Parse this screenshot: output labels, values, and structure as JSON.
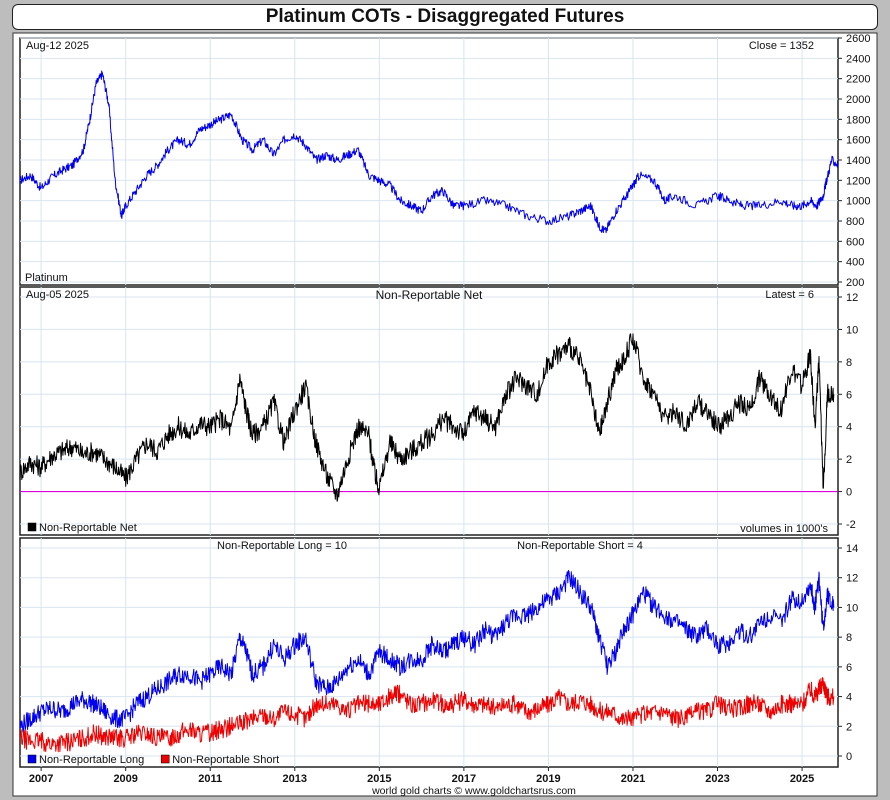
{
  "title": "Platinum COTs - Disaggregated Futures",
  "footer": "world gold charts © www.goldchartsrus.com",
  "x_axis": {
    "ticks": [
      "2007",
      "2009",
      "2011",
      "2013",
      "2015",
      "2017",
      "2019",
      "2021",
      "2023",
      "2025"
    ],
    "range": [
      2006.5,
      2025.85
    ]
  },
  "colors": {
    "price": "#0000ee",
    "net": "#000000",
    "long": "#0000ee",
    "short": "#ee0000",
    "zero_line": "#dd00dd",
    "grid": "#d8e4f0"
  },
  "chart_data": [
    {
      "type": "line",
      "panel": "price",
      "date_label": "Aug-12  2025",
      "corner_label": "Close = 1352",
      "series_label": "Platinum",
      "ylim": [
        200,
        2600
      ],
      "yticks": [
        200,
        400,
        600,
        800,
        1000,
        1200,
        1400,
        1600,
        1800,
        2000,
        2200,
        2400,
        2600
      ],
      "series": [
        {
          "name": "Platinum",
          "x": [
            2006.5,
            2006.75,
            2007.0,
            2007.25,
            2007.5,
            2007.75,
            2008.0,
            2008.15,
            2008.3,
            2008.45,
            2008.6,
            2008.75,
            2008.9,
            2009.0,
            2009.25,
            2009.5,
            2009.75,
            2010.0,
            2010.25,
            2010.5,
            2010.75,
            2011.0,
            2011.25,
            2011.5,
            2011.75,
            2012.0,
            2012.25,
            2012.5,
            2012.75,
            2013.0,
            2013.25,
            2013.5,
            2013.75,
            2014.0,
            2014.25,
            2014.5,
            2014.75,
            2015.0,
            2015.25,
            2015.5,
            2015.75,
            2016.0,
            2016.25,
            2016.5,
            2016.75,
            2017.0,
            2017.5,
            2018.0,
            2018.5,
            2019.0,
            2019.5,
            2019.75,
            2020.0,
            2020.2,
            2020.35,
            2020.6,
            2020.85,
            2021.0,
            2021.15,
            2021.5,
            2021.75,
            2022.0,
            2022.5,
            2023.0,
            2023.3,
            2023.6,
            2024.0,
            2024.5,
            2024.8,
            2025.0,
            2025.2,
            2025.35,
            2025.5,
            2025.58,
            2025.7,
            2025.85
          ],
          "values": [
            1200,
            1250,
            1120,
            1230,
            1300,
            1350,
            1500,
            1800,
            2150,
            2250,
            1950,
            1200,
            850,
            950,
            1100,
            1250,
            1350,
            1500,
            1600,
            1550,
            1700,
            1750,
            1800,
            1850,
            1600,
            1500,
            1600,
            1450,
            1600,
            1650,
            1550,
            1400,
            1450,
            1400,
            1450,
            1500,
            1250,
            1200,
            1150,
            1000,
            950,
            900,
            1050,
            1100,
            950,
            950,
            1000,
            950,
            850,
            800,
            850,
            900,
            950,
            750,
            700,
            900,
            1050,
            1150,
            1250,
            1200,
            1000,
            1050,
            950,
            1050,
            1000,
            950,
            950,
            1000,
            950,
            950,
            1000,
            950,
            1050,
            1200,
            1400,
            1352
          ]
        }
      ]
    },
    {
      "type": "line",
      "panel": "net",
      "title": "Non-Reportable Net",
      "date_label": "Aug-05  2025",
      "corner_label": "Latest = 6",
      "legend": [
        "Non-Reportable Net"
      ],
      "units_label": "volumes in 1000's",
      "ylim": [
        -2,
        12
      ],
      "yticks": [
        -2,
        0,
        2,
        4,
        6,
        8,
        10,
        12
      ],
      "series": [
        {
          "name": "Non-Reportable Net",
          "x": [
            2006.5,
            2006.75,
            2007.0,
            2007.25,
            2007.5,
            2007.75,
            2008.0,
            2008.25,
            2008.5,
            2008.75,
            2009.0,
            2009.25,
            2009.5,
            2009.75,
            2010.0,
            2010.25,
            2010.5,
            2010.75,
            2011.0,
            2011.25,
            2011.5,
            2011.7,
            2011.85,
            2012.0,
            2012.25,
            2012.5,
            2012.75,
            2013.0,
            2013.25,
            2013.5,
            2013.75,
            2014.0,
            2014.25,
            2014.5,
            2014.75,
            2014.9,
            2015.0,
            2015.25,
            2015.5,
            2015.75,
            2016.0,
            2016.25,
            2016.5,
            2016.75,
            2017.0,
            2017.25,
            2017.5,
            2017.75,
            2018.0,
            2018.25,
            2018.5,
            2018.75,
            2019.0,
            2019.25,
            2019.5,
            2019.75,
            2020.0,
            2020.2,
            2020.4,
            2020.6,
            2020.75,
            2021.0,
            2021.25,
            2021.5,
            2021.75,
            2022.0,
            2022.25,
            2022.5,
            2022.75,
            2023.0,
            2023.25,
            2023.5,
            2023.75,
            2024.0,
            2024.25,
            2024.5,
            2024.75,
            2025.0,
            2025.2,
            2025.3,
            2025.4,
            2025.5,
            2025.6,
            2025.75
          ],
          "values": [
            1.2,
            1.8,
            1.5,
            2.2,
            2.5,
            2.8,
            2.3,
            2.5,
            2.0,
            1.5,
            0.8,
            2.0,
            3.0,
            2.5,
            3.5,
            4.0,
            3.5,
            4.2,
            4.0,
            4.5,
            3.8,
            7.0,
            5.0,
            3.5,
            4.0,
            5.5,
            3.0,
            5.0,
            6.5,
            3.0,
            1.0,
            -0.2,
            2.0,
            4.0,
            3.5,
            1.0,
            0.2,
            3.0,
            2.0,
            2.5,
            3.0,
            3.5,
            4.5,
            4.0,
            3.5,
            5.0,
            4.5,
            4.0,
            6.0,
            7.0,
            6.5,
            6.0,
            8.0,
            8.5,
            9.0,
            8.0,
            6.0,
            3.5,
            5.5,
            7.5,
            8.0,
            9.5,
            7.0,
            6.0,
            4.5,
            5.0,
            4.0,
            5.5,
            5.0,
            4.0,
            4.5,
            5.5,
            5.0,
            7.0,
            6.0,
            5.0,
            7.5,
            6.5,
            8.5,
            4.0,
            8.0,
            0.2,
            6.0,
            6.0
          ]
        }
      ]
    },
    {
      "type": "line",
      "panel": "long_short",
      "long_label": "Non-Reportable Long = 10",
      "short_label": "Non-Reportable Short = 4",
      "legend": [
        "Non-Reportable Long",
        "Non-Reportable Short"
      ],
      "ylim": [
        0,
        14
      ],
      "yticks": [
        0,
        2,
        4,
        6,
        8,
        10,
        12,
        14
      ],
      "series": [
        {
          "name": "Non-Reportable Long",
          "x": [
            2006.5,
            2006.75,
            2007.0,
            2007.25,
            2007.5,
            2007.75,
            2008.0,
            2008.25,
            2008.5,
            2008.75,
            2009.0,
            2009.25,
            2009.5,
            2009.75,
            2010.0,
            2010.25,
            2010.5,
            2010.75,
            2011.0,
            2011.25,
            2011.5,
            2011.7,
            2011.85,
            2012.0,
            2012.25,
            2012.5,
            2012.75,
            2013.0,
            2013.25,
            2013.5,
            2013.75,
            2014.0,
            2014.25,
            2014.5,
            2014.75,
            2015.0,
            2015.25,
            2015.5,
            2015.75,
            2016.0,
            2016.25,
            2016.5,
            2016.75,
            2017.0,
            2017.25,
            2017.5,
            2017.75,
            2018.0,
            2018.25,
            2018.5,
            2018.75,
            2019.0,
            2019.25,
            2019.5,
            2019.75,
            2020.0,
            2020.2,
            2020.4,
            2020.6,
            2020.75,
            2021.0,
            2021.25,
            2021.5,
            2021.75,
            2022.0,
            2022.25,
            2022.5,
            2022.75,
            2023.0,
            2023.25,
            2023.5,
            2023.75,
            2024.0,
            2024.25,
            2024.5,
            2024.75,
            2025.0,
            2025.2,
            2025.3,
            2025.4,
            2025.5,
            2025.6,
            2025.75
          ],
          "values": [
            2.0,
            2.5,
            3.0,
            3.2,
            3.0,
            3.5,
            3.8,
            3.5,
            3.0,
            2.5,
            2.5,
            3.5,
            4.0,
            4.5,
            5.0,
            5.5,
            5.5,
            5.0,
            5.5,
            6.0,
            5.5,
            8.0,
            7.0,
            5.5,
            6.0,
            7.5,
            6.5,
            7.5,
            8.0,
            5.0,
            4.5,
            5.0,
            6.0,
            6.5,
            5.5,
            7.0,
            6.5,
            6.0,
            6.5,
            6.5,
            7.5,
            7.0,
            7.5,
            8.0,
            7.5,
            8.5,
            8.0,
            9.0,
            9.5,
            9.5,
            10.0,
            10.5,
            11.0,
            12.0,
            11.0,
            10.0,
            8.0,
            6.0,
            7.0,
            8.5,
            9.5,
            11.0,
            10.0,
            9.5,
            9.0,
            8.5,
            8.0,
            8.5,
            7.5,
            7.5,
            8.5,
            8.0,
            9.0,
            9.5,
            9.0,
            10.5,
            10.5,
            11.5,
            10.0,
            12.0,
            8.5,
            11.0,
            10.0
          ]
        },
        {
          "name": "Non-Reportable Short",
          "x": [
            2006.5,
            2006.75,
            2007.0,
            2007.25,
            2007.5,
            2007.75,
            2008.0,
            2008.25,
            2008.5,
            2008.75,
            2009.0,
            2009.25,
            2009.5,
            2009.75,
            2010.0,
            2010.25,
            2010.5,
            2010.75,
            2011.0,
            2011.25,
            2011.5,
            2011.75,
            2012.0,
            2012.25,
            2012.5,
            2012.75,
            2013.0,
            2013.25,
            2013.5,
            2013.75,
            2014.0,
            2014.25,
            2014.5,
            2014.75,
            2015.0,
            2015.25,
            2015.5,
            2015.75,
            2016.0,
            2016.25,
            2016.5,
            2016.75,
            2017.0,
            2017.25,
            2017.5,
            2017.75,
            2018.0,
            2018.25,
            2018.5,
            2018.75,
            2019.0,
            2019.25,
            2019.5,
            2019.75,
            2020.0,
            2020.25,
            2020.5,
            2020.75,
            2021.0,
            2021.25,
            2021.5,
            2021.75,
            2022.0,
            2022.25,
            2022.5,
            2022.75,
            2023.0,
            2023.25,
            2023.5,
            2023.75,
            2024.0,
            2024.25,
            2024.5,
            2024.75,
            2025.0,
            2025.2,
            2025.3,
            2025.4,
            2025.5,
            2025.6,
            2025.75
          ],
          "values": [
            1.2,
            1.0,
            1.0,
            0.8,
            0.9,
            1.0,
            1.2,
            1.5,
            1.3,
            1.2,
            1.2,
            1.5,
            1.5,
            1.2,
            1.2,
            1.5,
            1.8,
            1.5,
            1.6,
            1.8,
            2.0,
            2.2,
            2.5,
            2.8,
            2.5,
            3.0,
            2.8,
            2.5,
            3.5,
            3.5,
            3.5,
            3.0,
            3.5,
            3.5,
            3.5,
            4.0,
            4.2,
            3.5,
            3.5,
            3.8,
            3.5,
            3.5,
            3.8,
            3.5,
            3.5,
            3.2,
            3.5,
            3.5,
            3.0,
            3.2,
            3.5,
            4.0,
            3.5,
            3.8,
            3.5,
            3.0,
            3.0,
            2.5,
            2.5,
            2.8,
            3.0,
            3.0,
            2.5,
            2.5,
            3.0,
            3.0,
            3.5,
            3.2,
            3.2,
            3.5,
            3.5,
            3.0,
            3.5,
            3.5,
            3.5,
            4.5,
            4.0,
            4.5,
            5.0,
            4.0,
            4.0
          ]
        }
      ]
    }
  ]
}
